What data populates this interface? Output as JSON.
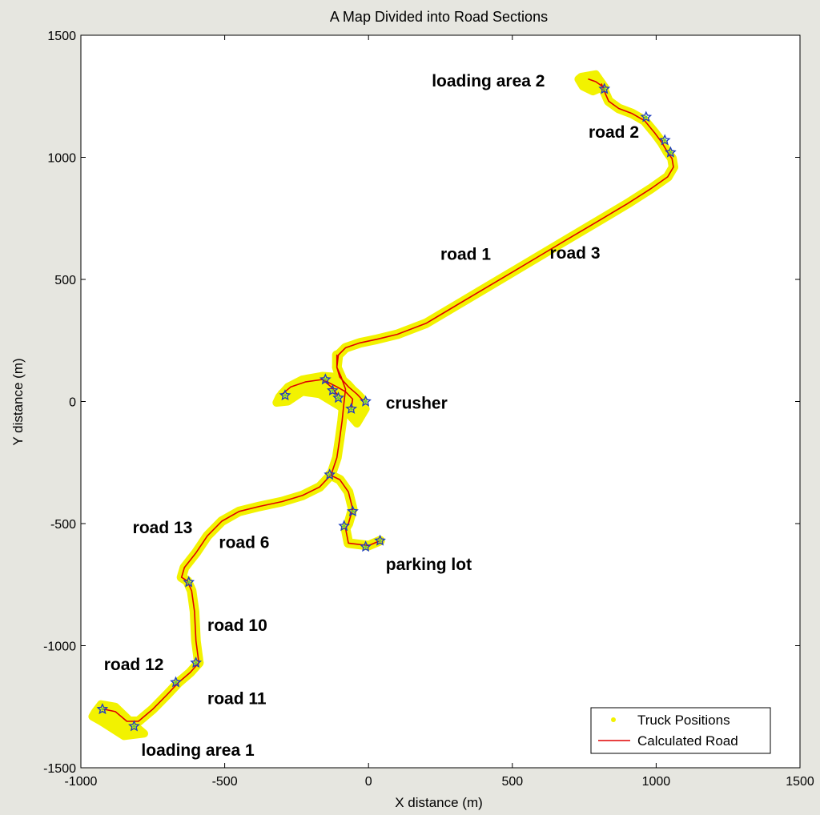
{
  "chart_data": {
    "type": "line",
    "title": "A Map Divided into Road Sections",
    "xlabel": "X distance (m)",
    "ylabel": "Y distance (m)",
    "xlim": [
      -1000,
      1500
    ],
    "ylim": [
      -1500,
      1500
    ],
    "xticks": [
      -1000,
      -500,
      0,
      500,
      1000,
      1500
    ],
    "yticks": [
      -1500,
      -1000,
      -500,
      0,
      500,
      1000,
      1500
    ],
    "xtick_labels": [
      "-1000",
      "-500",
      "0",
      "500",
      "1000",
      "1500"
    ],
    "ytick_labels": [
      "-1500",
      "-1000",
      "-500",
      "0",
      "500",
      "1000",
      "1500"
    ],
    "grid": false,
    "legend_position": "bottom-right",
    "colors": {
      "truck": "#f2f200",
      "road": "#e00000",
      "marker": "#1f3fbf",
      "marker_point": "#60d040",
      "axes_bg": "#ffffff",
      "figure_bg": "#e6e6e0"
    },
    "series": [
      {
        "name": "Truck Positions",
        "style": "yellow-points"
      },
      {
        "name": "Calculated Road",
        "style": "red-line"
      }
    ],
    "roads": [
      {
        "id": "main-road",
        "points": [
          [
            -590,
            -1070
          ],
          [
            -600,
            -980
          ],
          [
            -605,
            -860
          ],
          [
            -615,
            -775
          ],
          [
            -630,
            -735
          ],
          [
            -650,
            -720
          ],
          [
            -640,
            -680
          ],
          [
            -600,
            -620
          ],
          [
            -560,
            -550
          ],
          [
            -510,
            -490
          ],
          [
            -450,
            -450
          ],
          [
            -380,
            -430
          ],
          [
            -300,
            -410
          ],
          [
            -230,
            -385
          ],
          [
            -170,
            -350
          ],
          [
            -130,
            -300
          ],
          [
            -110,
            -230
          ],
          [
            -100,
            -150
          ],
          [
            -92,
            -80
          ],
          [
            -85,
            0
          ],
          [
            -80,
            50
          ],
          [
            -95,
            100
          ],
          [
            -110,
            140
          ],
          [
            -105,
            190
          ],
          [
            -80,
            220
          ],
          [
            -30,
            240
          ],
          [
            30,
            255
          ],
          [
            100,
            275
          ],
          [
            200,
            320
          ],
          [
            300,
            390
          ],
          [
            400,
            460
          ],
          [
            500,
            530
          ],
          [
            600,
            600
          ],
          [
            700,
            670
          ],
          [
            800,
            740
          ],
          [
            900,
            810
          ],
          [
            980,
            870
          ],
          [
            1040,
            920
          ],
          [
            1060,
            960
          ],
          [
            1055,
            995
          ],
          [
            1040,
            1020
          ],
          [
            1020,
            1060
          ],
          [
            995,
            1100
          ],
          [
            960,
            1150
          ],
          [
            915,
            1180
          ],
          [
            870,
            1200
          ],
          [
            835,
            1230
          ],
          [
            820,
            1270
          ],
          [
            810,
            1300
          ]
        ]
      },
      {
        "id": "road-3-branch",
        "points": [
          [
            -110,
            190
          ],
          [
            -110,
            140
          ],
          [
            -100,
            100
          ],
          [
            -70,
            60
          ],
          [
            -40,
            30
          ],
          [
            -20,
            5
          ]
        ]
      },
      {
        "id": "crusher-loop-left",
        "points": [
          [
            -300,
            30
          ],
          [
            -270,
            60
          ],
          [
            -220,
            80
          ],
          [
            -160,
            90
          ],
          [
            -130,
            60
          ],
          [
            -110,
            30
          ]
        ]
      },
      {
        "id": "crusher-loop-inner",
        "points": [
          [
            -160,
            90
          ],
          [
            -135,
            75
          ],
          [
            -110,
            60
          ],
          [
            -80,
            40
          ],
          [
            -55,
            10
          ],
          [
            -60,
            -30
          ]
        ]
      },
      {
        "id": "parking-lot-road",
        "points": [
          [
            -135,
            -300
          ],
          [
            -100,
            -320
          ],
          [
            -70,
            -370
          ],
          [
            -55,
            -440
          ],
          [
            -70,
            -500
          ],
          [
            -80,
            -520
          ],
          [
            -70,
            -580
          ],
          [
            0,
            -590
          ],
          [
            40,
            -570
          ]
        ]
      },
      {
        "id": "loading-area-1-road",
        "points": [
          [
            -590,
            -1070
          ],
          [
            -620,
            -1110
          ],
          [
            -660,
            -1150
          ],
          [
            -700,
            -1200
          ],
          [
            -750,
            -1260
          ],
          [
            -800,
            -1310
          ],
          [
            -840,
            -1310
          ],
          [
            -880,
            -1270
          ],
          [
            -920,
            -1260
          ]
        ]
      },
      {
        "id": "loading-area-2-spur",
        "points": [
          [
            820,
            1285
          ],
          [
            790,
            1310
          ],
          [
            765,
            1320
          ]
        ]
      }
    ],
    "markers": [
      [
        820,
        1280
      ],
      [
        965,
        1165
      ],
      [
        1050,
        1020
      ],
      [
        1030,
        1070
      ],
      [
        -290,
        25
      ],
      [
        -150,
        90
      ],
      [
        -105,
        15
      ],
      [
        -10,
        0
      ],
      [
        -125,
        45
      ],
      [
        -60,
        -30
      ],
      [
        -135,
        -300
      ],
      [
        -55,
        -450
      ],
      [
        -85,
        -510
      ],
      [
        -10,
        -595
      ],
      [
        40,
        -570
      ],
      [
        -625,
        -740
      ],
      [
        -600,
        -1070
      ],
      [
        -670,
        -1150
      ],
      [
        -815,
        -1330
      ],
      [
        -925,
        -1260
      ]
    ],
    "truck_blobs": [
      [
        [
          740,
          1330
        ],
        [
          790,
          1340
        ],
        [
          820,
          1290
        ],
        [
          780,
          1270
        ],
        [
          745,
          1290
        ],
        [
          730,
          1320
        ]
      ],
      [
        [
          -310,
          20
        ],
        [
          -280,
          60
        ],
        [
          -230,
          90
        ],
        [
          -160,
          105
        ],
        [
          -100,
          100
        ],
        [
          -70,
          70
        ],
        [
          -40,
          30
        ],
        [
          -10,
          -30
        ],
        [
          -40,
          -90
        ],
        [
          -70,
          -50
        ],
        [
          -100,
          -20
        ],
        [
          -170,
          30
        ],
        [
          -230,
          40
        ],
        [
          -280,
          0
        ],
        [
          -320,
          -5
        ]
      ],
      [
        [
          -950,
          -1270
        ],
        [
          -930,
          -1240
        ],
        [
          -880,
          -1250
        ],
        [
          -810,
          -1330
        ],
        [
          -780,
          -1360
        ],
        [
          -850,
          -1370
        ],
        [
          -930,
          -1310
        ],
        [
          -960,
          -1290
        ]
      ]
    ],
    "labels": [
      {
        "text": "loading area 2",
        "x": 220,
        "y": 1290
      },
      {
        "text": "road 2",
        "x": 765,
        "y": 1080
      },
      {
        "text": "road 1",
        "x": 250,
        "y": 580
      },
      {
        "text": "road 3",
        "x": 630,
        "y": 585
      },
      {
        "text": "crusher",
        "x": 60,
        "y": -30
      },
      {
        "text": "road 13",
        "x": -820,
        "y": -540
      },
      {
        "text": "road 6",
        "x": -520,
        "y": -600
      },
      {
        "text": "parking lot",
        "x": 60,
        "y": -690
      },
      {
        "text": "road 10",
        "x": -560,
        "y": -940
      },
      {
        "text": "road 12",
        "x": -920,
        "y": -1100
      },
      {
        "text": "road 11",
        "x": -560,
        "y": -1240
      },
      {
        "text": "loading area 1",
        "x": -790,
        "y": -1450
      }
    ]
  }
}
